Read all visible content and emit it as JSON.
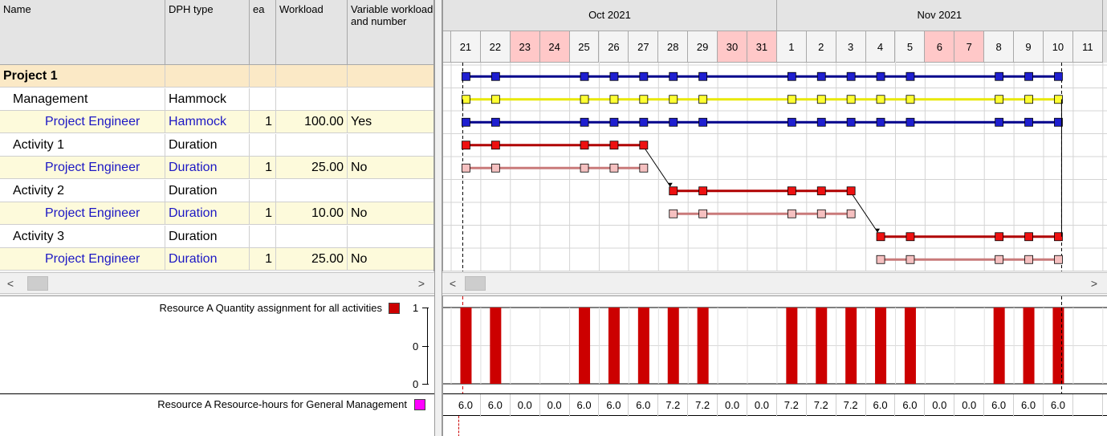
{
  "table": {
    "columns": [
      {
        "key": "name",
        "label": "Name"
      },
      {
        "key": "dph",
        "label": "DPH type"
      },
      {
        "key": "ea",
        "label": "ea"
      },
      {
        "key": "workload",
        "label": "Workload"
      },
      {
        "key": "variable",
        "label": "Variable workload and number"
      }
    ],
    "rows": [
      {
        "type": "project",
        "name": "Project 1",
        "dph": "",
        "ea": "",
        "workload": "",
        "variable": ""
      },
      {
        "type": "activity",
        "name": "Management",
        "dph": "Hammock",
        "ea": "",
        "workload": "",
        "variable": ""
      },
      {
        "type": "resource",
        "name": "Project Engineer",
        "dph": "Hammock",
        "ea": "1",
        "workload": "100.00",
        "variable": "Yes"
      },
      {
        "type": "activity",
        "name": "Activity 1",
        "dph": "Duration",
        "ea": "",
        "workload": "",
        "variable": ""
      },
      {
        "type": "resource",
        "name": "Project Engineer",
        "dph": "Duration",
        "ea": "1",
        "workload": "25.00",
        "variable": "No"
      },
      {
        "type": "activity",
        "name": "Activity 2",
        "dph": "Duration",
        "ea": "",
        "workload": "",
        "variable": ""
      },
      {
        "type": "resource",
        "name": "Project Engineer",
        "dph": "Duration",
        "ea": "1",
        "workload": "10.00",
        "variable": "No"
      },
      {
        "type": "activity",
        "name": "Activity 3",
        "dph": "Duration",
        "ea": "",
        "workload": "",
        "variable": ""
      },
      {
        "type": "resource",
        "name": "Project Engineer",
        "dph": "Duration",
        "ea": "1",
        "workload": "25.00",
        "variable": "No"
      }
    ]
  },
  "timeline": {
    "months": [
      {
        "label": "Oct 2021",
        "days": 11
      },
      {
        "label": "Nov 2021",
        "days": 11
      }
    ],
    "days": [
      {
        "label": "21",
        "weekend": false
      },
      {
        "label": "22",
        "weekend": false
      },
      {
        "label": "23",
        "weekend": true
      },
      {
        "label": "24",
        "weekend": true
      },
      {
        "label": "25",
        "weekend": false
      },
      {
        "label": "26",
        "weekend": false
      },
      {
        "label": "27",
        "weekend": false
      },
      {
        "label": "28",
        "weekend": false
      },
      {
        "label": "29",
        "weekend": false
      },
      {
        "label": "30",
        "weekend": true
      },
      {
        "label": "31",
        "weekend": true
      },
      {
        "label": "1",
        "weekend": false
      },
      {
        "label": "2",
        "weekend": false
      },
      {
        "label": "3",
        "weekend": false
      },
      {
        "label": "4",
        "weekend": false
      },
      {
        "label": "5",
        "weekend": false
      },
      {
        "label": "6",
        "weekend": true
      },
      {
        "label": "7",
        "weekend": true
      },
      {
        "label": "8",
        "weekend": false
      },
      {
        "label": "9",
        "weekend": false
      },
      {
        "label": "10",
        "weekend": false
      },
      {
        "label": "11",
        "weekend": false
      }
    ]
  },
  "gantt": {
    "bars": [
      {
        "row": 0,
        "from": 0,
        "to": 20,
        "color": "#00008b",
        "marker": "#1f1fd0",
        "markers": [
          0,
          1,
          4,
          5,
          6,
          7,
          8,
          11,
          12,
          13,
          14,
          15,
          18,
          19,
          20
        ]
      },
      {
        "row": 1,
        "from": 0,
        "to": 20,
        "color": "#e8e800",
        "marker": "#ffff33",
        "markers": [
          0,
          1,
          4,
          5,
          6,
          7,
          8,
          11,
          12,
          13,
          14,
          15,
          18,
          19,
          20
        ]
      },
      {
        "row": 2,
        "from": 0,
        "to": 20,
        "color": "#00008b",
        "marker": "#1f1fd0",
        "markers": [
          0,
          1,
          4,
          5,
          6,
          7,
          8,
          11,
          12,
          13,
          14,
          15,
          18,
          19,
          20
        ]
      },
      {
        "row": 3,
        "from": 0,
        "to": 6,
        "color": "#b00000",
        "marker": "#ee1111",
        "markers": [
          0,
          1,
          4,
          5,
          6
        ]
      },
      {
        "row": 4,
        "from": 0,
        "to": 6,
        "color": "#c97a7a",
        "marker": "#f5c0c0",
        "markers": [
          0,
          1,
          4,
          5,
          6
        ]
      },
      {
        "row": 5,
        "from": 7,
        "to": 13,
        "color": "#b00000",
        "marker": "#ee1111",
        "markers": [
          7,
          8,
          11,
          12,
          13
        ]
      },
      {
        "row": 6,
        "from": 7,
        "to": 13,
        "color": "#c97a7a",
        "marker": "#f5c0c0",
        "markers": [
          7,
          8,
          11,
          12,
          13
        ]
      },
      {
        "row": 7,
        "from": 14,
        "to": 20,
        "color": "#b00000",
        "marker": "#ee1111",
        "markers": [
          14,
          15,
          18,
          19,
          20
        ]
      },
      {
        "row": 8,
        "from": 14,
        "to": 20,
        "color": "#c97a7a",
        "marker": "#f5c0c0",
        "markers": [
          14,
          15,
          18,
          19,
          20
        ]
      }
    ],
    "links": [
      {
        "fromDay": 6,
        "fromRow": 3,
        "toDay": 7,
        "toRow": 5
      },
      {
        "fromDay": 13,
        "fromRow": 5,
        "toDay": 14,
        "toRow": 7
      }
    ]
  },
  "chart_data": {
    "type": "bar",
    "title": "Resource A Quantity assignment for all activities",
    "categories": [
      "21",
      "22",
      "23",
      "24",
      "25",
      "26",
      "27",
      "28",
      "29",
      "30",
      "31",
      "1",
      "2",
      "3",
      "4",
      "5",
      "6",
      "7",
      "8",
      "9",
      "10",
      "11"
    ],
    "values": [
      1,
      1,
      0,
      0,
      1,
      1,
      1,
      1,
      1,
      0,
      0,
      1,
      1,
      1,
      1,
      1,
      0,
      0,
      1,
      1,
      1,
      0
    ],
    "ylim": [
      0,
      1
    ],
    "yticks": [
      "1",
      "0",
      "0"
    ],
    "color": "#cc0000"
  },
  "resource_hours": {
    "label": "Resource A Resource-hours for General Management",
    "color": "#ff00ff",
    "values": [
      "6.0",
      "6.0",
      "0.0",
      "0.0",
      "6.0",
      "6.0",
      "6.0",
      "7.2",
      "7.2",
      "0.0",
      "0.0",
      "7.2",
      "7.2",
      "7.2",
      "6.0",
      "6.0",
      "0.0",
      "0.0",
      "6.0",
      "6.0",
      "6.0",
      ""
    ]
  },
  "scroll": {
    "left": "<",
    "right": ">"
  }
}
